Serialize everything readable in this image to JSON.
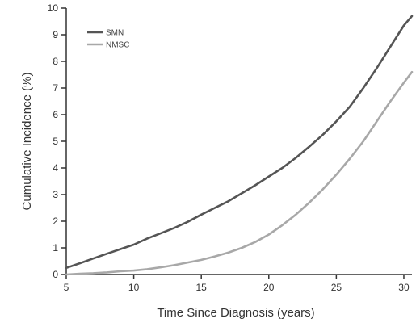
{
  "chart_data": {
    "type": "line",
    "title": "",
    "xlabel": "Time Since Diagnosis (years)",
    "ylabel": "Cumulative Incidence (%)",
    "xlim": [
      5,
      30.6
    ],
    "ylim": [
      0,
      10
    ],
    "x_ticks": [
      5,
      10,
      15,
      20,
      25,
      30
    ],
    "y_ticks": [
      0,
      1,
      2,
      3,
      4,
      5,
      6,
      7,
      8,
      9,
      10
    ],
    "grid": false,
    "legend_position": "top-left",
    "series": [
      {
        "name": "SMN",
        "color": "#555555",
        "x": [
          5,
          6,
          7,
          8,
          9,
          10,
          11,
          12,
          13,
          14,
          15,
          16,
          17,
          18,
          19,
          20,
          21,
          22,
          23,
          24,
          25,
          26,
          27,
          28,
          29,
          30,
          30.6
        ],
        "y": [
          0.25,
          0.42,
          0.6,
          0.78,
          0.95,
          1.12,
          1.35,
          1.55,
          1.75,
          1.98,
          2.25,
          2.5,
          2.75,
          3.05,
          3.35,
          3.68,
          4.0,
          4.38,
          4.8,
          5.25,
          5.75,
          6.3,
          7.0,
          7.75,
          8.55,
          9.35,
          9.7
        ]
      },
      {
        "name": "NMSC",
        "color": "#a8a8a8",
        "x": [
          5,
          6,
          7,
          8,
          9,
          10,
          11,
          12,
          13,
          14,
          15,
          16,
          17,
          18,
          19,
          20,
          21,
          22,
          23,
          24,
          25,
          26,
          27,
          28,
          29,
          30,
          30.6
        ],
        "y": [
          0.0,
          0.03,
          0.05,
          0.08,
          0.12,
          0.15,
          0.2,
          0.27,
          0.35,
          0.45,
          0.55,
          0.68,
          0.82,
          1.0,
          1.22,
          1.5,
          1.85,
          2.25,
          2.7,
          3.2,
          3.75,
          4.35,
          5.0,
          5.75,
          6.5,
          7.2,
          7.6
        ]
      }
    ]
  }
}
